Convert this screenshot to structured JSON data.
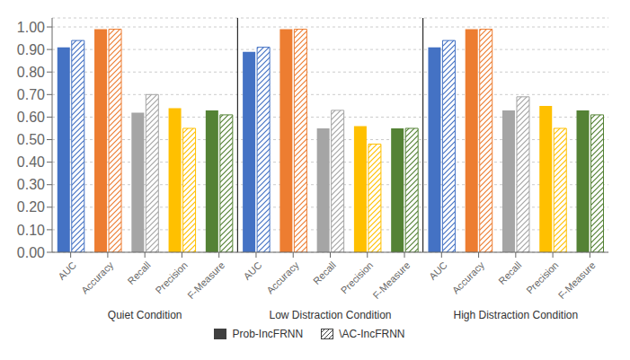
{
  "chart_data": {
    "type": "bar",
    "categories": [
      "AUC",
      "Accuracy",
      "Recall",
      "Precision",
      "F-Measure",
      "AUC",
      "Accuracy",
      "Recall",
      "Precision",
      "F-Measure",
      "AUC",
      "Accuracy",
      "Recall",
      "Precision",
      "F-Measure"
    ],
    "annotations": [
      "Quiet Condition",
      "Low Distraction Condition",
      "High Distraction Condition"
    ],
    "series": [
      {
        "name": "Prob-IncFRNN",
        "color": "#404040",
        "colors": [
          "#4472C4",
          "#ED7D31",
          "#A5A5A5",
          "#FFC000",
          "#548235",
          "#4472C4",
          "#ED7D31",
          "#A5A5A5",
          "#FFC000",
          "#548235",
          "#4472C4",
          "#ED7D31",
          "#A5A5A5",
          "#FFC000",
          "#548235"
        ],
        "values": [
          0.91,
          0.99,
          0.62,
          0.64,
          0.63,
          0.89,
          0.99,
          0.55,
          0.56,
          0.55,
          0.91,
          0.99,
          0.63,
          0.65,
          0.63
        ]
      },
      {
        "name": "\\AC-IncFRNN",
        "color": "#404040",
        "colors": [
          "#4472C4",
          "#ED7D31",
          "#A5A5A5",
          "#FFC000",
          "#548235",
          "#4472C4",
          "#ED7D31",
          "#A5A5A5",
          "#FFC000",
          "#548235",
          "#4472C4",
          "#ED7D31",
          "#A5A5A5",
          "#FFC000",
          "#548235"
        ],
        "values": [
          0.94,
          0.99,
          0.7,
          0.55,
          0.61,
          0.91,
          0.99,
          0.63,
          0.48,
          0.55,
          0.94,
          0.99,
          0.69,
          0.55,
          0.61
        ]
      }
    ],
    "ylim": [
      0.0,
      1.04
    ],
    "yticks": [
      {
        "value": 0.0,
        "label": "0.00"
      },
      {
        "value": 0.1,
        "label": "0.10"
      },
      {
        "value": 0.2,
        "label": "0.20"
      },
      {
        "value": 0.3,
        "label": "0.30"
      },
      {
        "value": 0.4,
        "label": "0.40"
      },
      {
        "value": 0.5,
        "label": "0.50"
      },
      {
        "value": 0.6,
        "label": "0.60"
      },
      {
        "value": 0.7,
        "label": "0.70"
      },
      {
        "value": 0.8,
        "label": "0.80"
      },
      {
        "value": 0.9,
        "label": "0.90"
      },
      {
        "value": 1.0,
        "label": "1.00"
      }
    ],
    "grid": true,
    "legend": "bottom"
  }
}
